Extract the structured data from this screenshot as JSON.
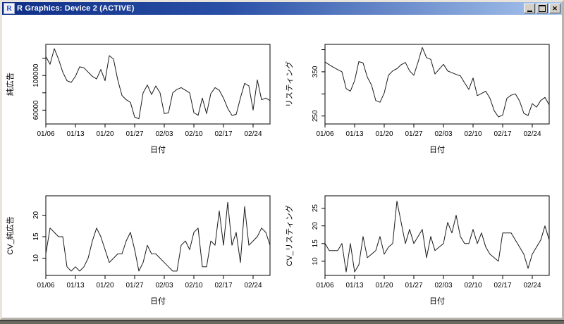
{
  "window": {
    "title": "R Graphics: Device 2 (ACTIVE)",
    "icon_letter": "R",
    "minimize_glyph": "",
    "maximize_glyph": "",
    "close_glyph": "✕"
  },
  "chart_data": [
    {
      "type": "line",
      "name": "pure-ads",
      "ylabel": "純広告",
      "xlabel": "日付",
      "x_tick_labels": [
        "01/06",
        "01/13",
        "01/20",
        "01/27",
        "02/03",
        "02/10",
        "02/17",
        "02/24"
      ],
      "x_tick_index": [
        0,
        7,
        14,
        21,
        28,
        35,
        42,
        49
      ],
      "y_ticks": [
        60000,
        80000,
        100000,
        120000
      ],
      "y_tick_labels": [
        "60000",
        "",
        "100000",
        ""
      ],
      "ylim": [
        44000,
        136000
      ],
      "legend": "none",
      "grid": false,
      "values": [
        122000,
        113000,
        131000,
        119000,
        104000,
        94000,
        92000,
        99000,
        110000,
        109000,
        104000,
        99000,
        96000,
        107000,
        94000,
        123000,
        119000,
        95000,
        77000,
        72000,
        69000,
        52000,
        50000,
        80000,
        89000,
        78000,
        88000,
        80000,
        56000,
        57000,
        80000,
        84000,
        86000,
        83000,
        80000,
        57000,
        54000,
        74000,
        56000,
        79000,
        86000,
        83000,
        74000,
        62000,
        54000,
        55000,
        74000,
        91000,
        88000,
        60000,
        95000,
        72000,
        74000,
        71000
      ]
    },
    {
      "type": "line",
      "name": "listing",
      "ylabel": "リスティング",
      "xlabel": "日付",
      "x_tick_labels": [
        "01/06",
        "01/13",
        "01/20",
        "01/27",
        "02/03",
        "02/10",
        "02/17",
        "02/24"
      ],
      "x_tick_index": [
        0,
        7,
        14,
        21,
        28,
        35,
        42,
        49
      ],
      "y_ticks": [
        250,
        300,
        350,
        400
      ],
      "y_tick_labels": [
        "250",
        "",
        "350",
        ""
      ],
      "ylim": [
        232,
        412
      ],
      "legend": "none",
      "grid": false,
      "values": [
        372,
        366,
        360,
        355,
        350,
        312,
        306,
        330,
        373,
        370,
        338,
        320,
        285,
        281,
        302,
        342,
        352,
        357,
        366,
        371,
        352,
        342,
        372,
        405,
        382,
        378,
        345,
        356,
        367,
        352,
        348,
        344,
        341,
        325,
        310,
        336,
        296,
        301,
        306,
        290,
        262,
        248,
        252,
        290,
        297,
        300,
        284,
        256,
        251,
        278,
        270,
        285,
        292,
        275
      ]
    },
    {
      "type": "line",
      "name": "cv-pure-ads",
      "ylabel": "CV_純広告",
      "xlabel": "日付",
      "x_tick_labels": [
        "01/06",
        "01/13",
        "01/20",
        "01/27",
        "02/03",
        "02/10",
        "02/17",
        "02/24"
      ],
      "x_tick_index": [
        0,
        7,
        14,
        21,
        28,
        35,
        42,
        49
      ],
      "y_ticks": [
        10,
        15,
        20
      ],
      "y_tick_labels": [
        "10",
        "15",
        "20"
      ],
      "ylim": [
        6,
        24.5
      ],
      "legend": "none",
      "grid": false,
      "values": [
        11,
        17,
        16,
        15,
        15,
        8,
        7,
        8,
        7,
        8,
        10,
        14,
        17,
        15,
        12,
        9,
        10,
        11,
        11,
        14,
        16,
        12,
        7,
        9,
        13,
        11,
        11,
        10,
        9,
        8,
        7,
        7,
        13,
        14,
        12,
        16,
        17,
        8,
        8,
        14,
        13,
        21,
        13,
        23,
        13,
        16,
        9,
        22,
        13,
        14,
        15,
        17,
        16,
        13
      ]
    },
    {
      "type": "line",
      "name": "cv-listing",
      "ylabel": "CV_リスティング",
      "xlabel": "日付",
      "x_tick_labels": [
        "01/06",
        "01/13",
        "01/20",
        "01/27",
        "02/03",
        "02/10",
        "02/17",
        "02/24"
      ],
      "x_tick_index": [
        0,
        7,
        14,
        21,
        28,
        35,
        42,
        49
      ],
      "y_ticks": [
        10,
        15,
        20,
        25
      ],
      "y_tick_labels": [
        "10",
        "15",
        "20",
        "25"
      ],
      "ylim": [
        6,
        28.5
      ],
      "legend": "none",
      "grid": false,
      "values": [
        15,
        13,
        13,
        13,
        15,
        7,
        15,
        7,
        9,
        17,
        11,
        12,
        13,
        17,
        12,
        14,
        15,
        27,
        21,
        15,
        19,
        15,
        17,
        19,
        11,
        17,
        13,
        14,
        15,
        21,
        18,
        23,
        17,
        15,
        15,
        19,
        15,
        18,
        14,
        12,
        11,
        10,
        18,
        18,
        18,
        16,
        14,
        12,
        8,
        12,
        14,
        16,
        20,
        16
      ]
    }
  ]
}
